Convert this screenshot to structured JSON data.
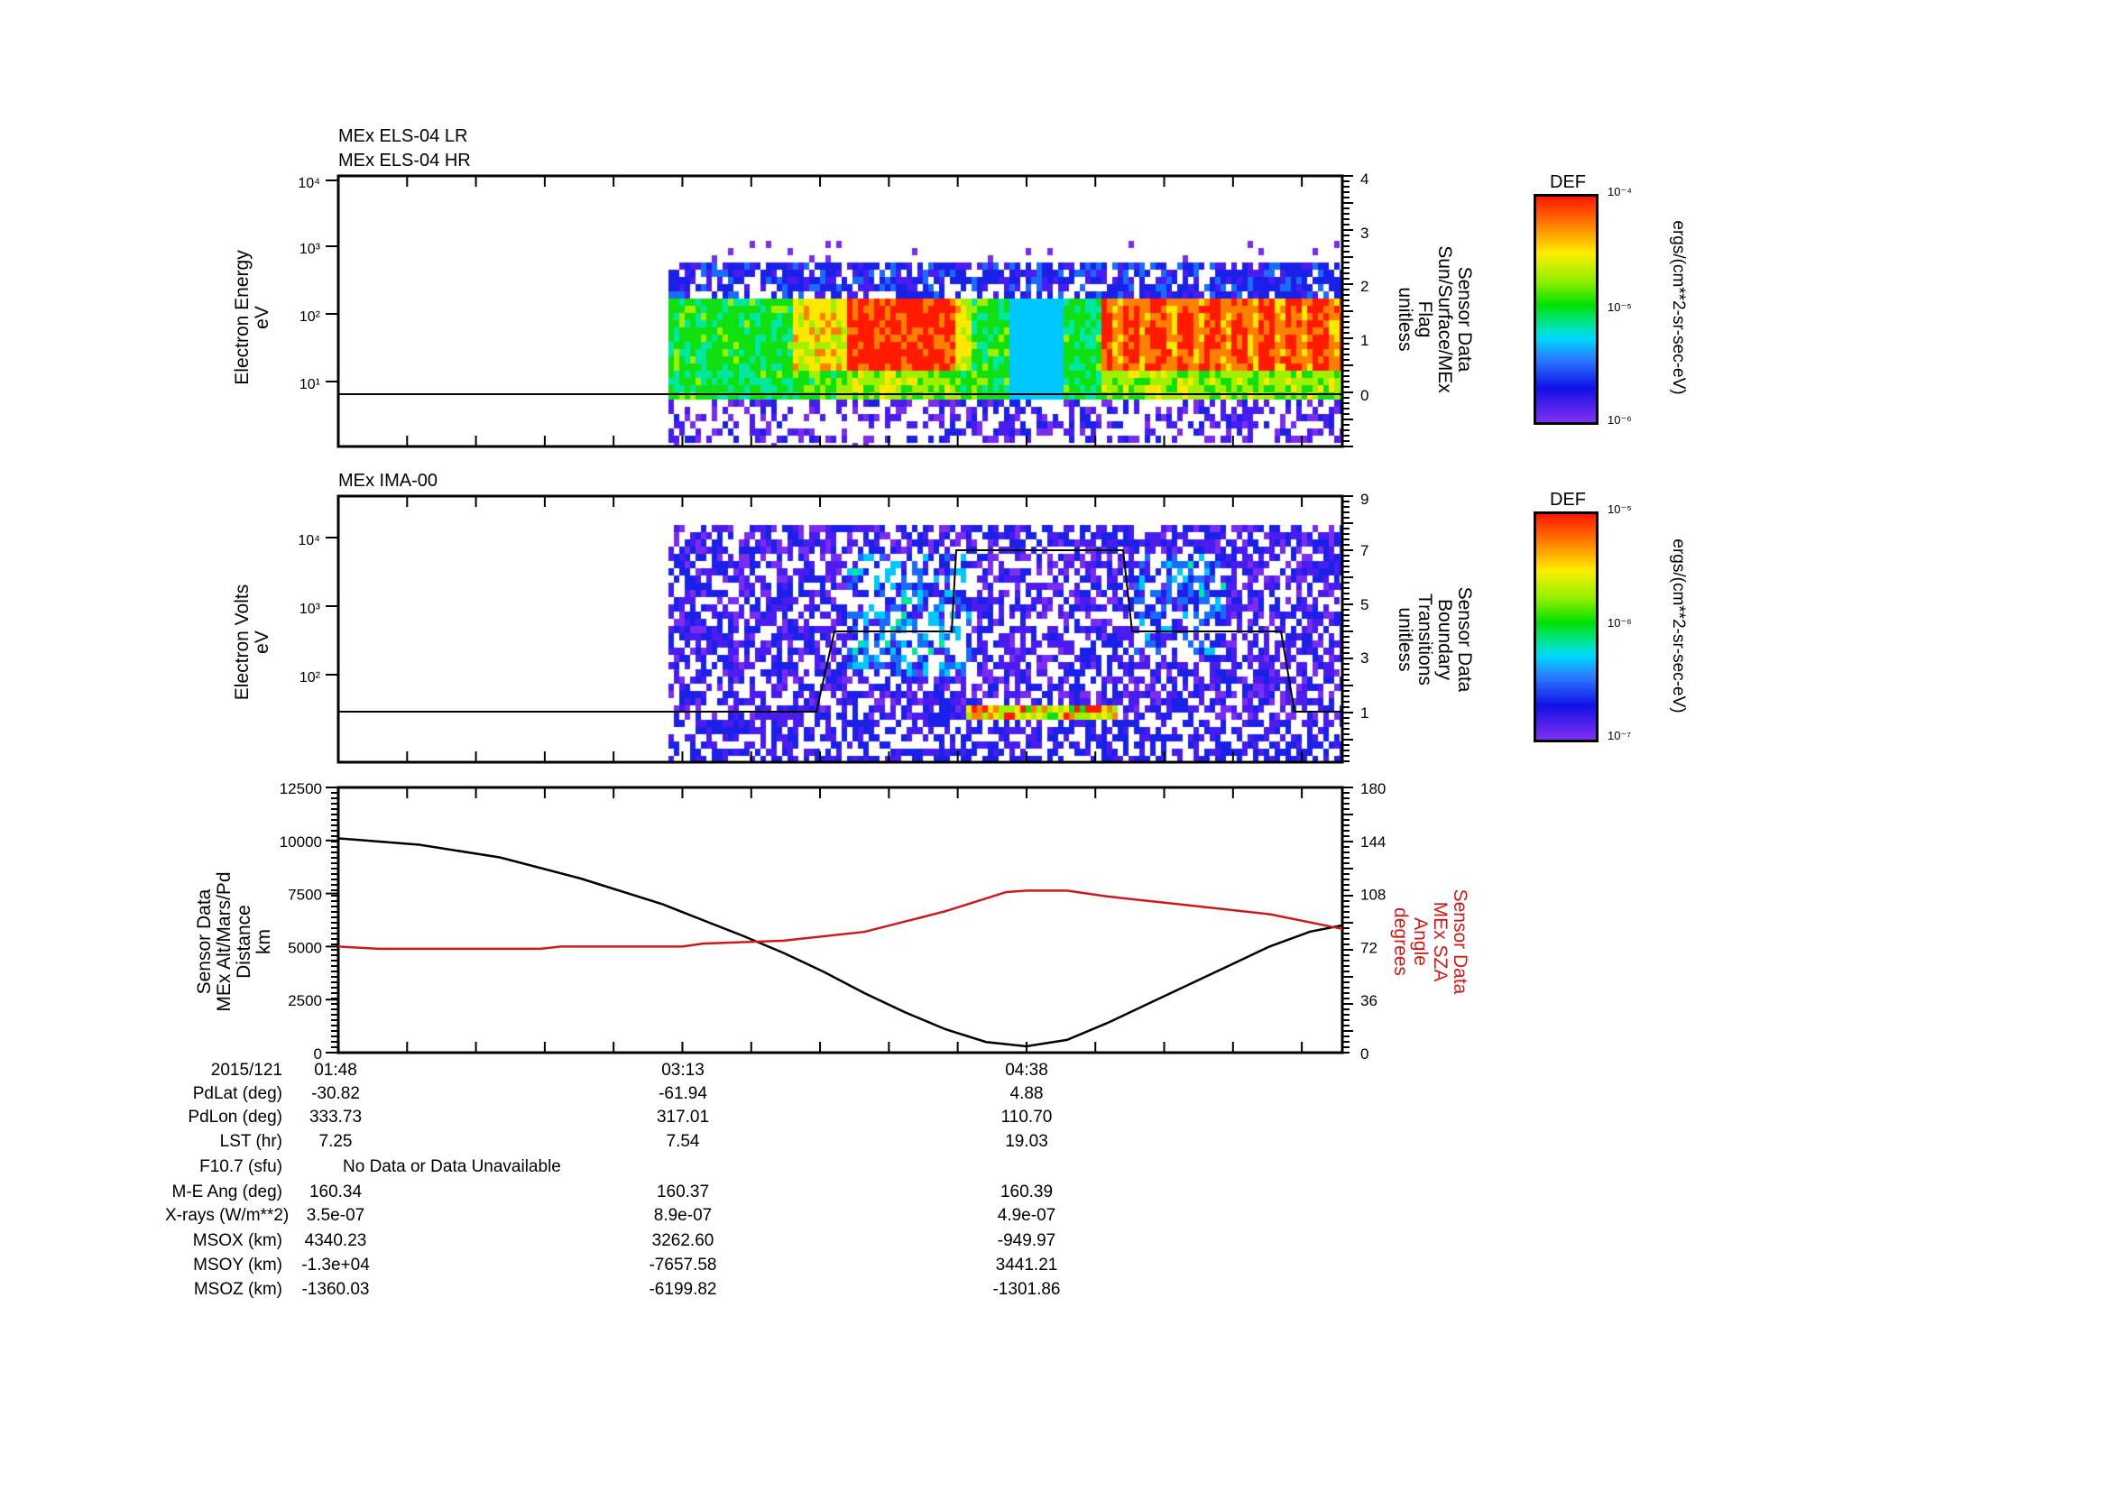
{
  "panel1": {
    "titles": [
      "MEx ELS-04 LR",
      "MEx ELS-04 HR"
    ],
    "ylabel": [
      "Electron Energy",
      "eV"
    ],
    "yticks": [
      "10⁴",
      "10³",
      "10²",
      "10¹"
    ],
    "y2label": [
      "Sensor Data",
      "Sun/Surface/MEx",
      "Flag",
      "unitless"
    ],
    "y2ticks": [
      "4",
      "3",
      "2",
      "1",
      "0"
    ],
    "colorbar": {
      "title": "DEF",
      "ticks": [
        "10⁻⁴",
        "10⁻⁵",
        "10⁻⁶"
      ],
      "unit": "ergs/(cm**2-sr-sec-eV)"
    }
  },
  "panel2": {
    "titles": [
      "MEx IMA-00"
    ],
    "ylabel": [
      "Electron Volts",
      "eV"
    ],
    "yticks": [
      "10⁴",
      "10³",
      "10²"
    ],
    "y2label": [
      "Sensor Data",
      "Boundary",
      "Transitions",
      "unitless"
    ],
    "y2ticks": [
      "9",
      "7",
      "5",
      "3",
      "1"
    ],
    "colorbar": {
      "title": "DEF",
      "ticks": [
        "10⁻⁵",
        "10⁻⁶",
        "10⁻⁷"
      ],
      "unit": "ergs/(cm**2-sr-sec-eV)"
    }
  },
  "chart_data": {
    "type": "line",
    "x_unit": "minutes after 01:48 (2015/121)",
    "xlim": [
      0,
      248
    ],
    "ylabel": [
      "Sensor Data",
      "MEx Alt/Mars/Pd",
      "Distance",
      "km"
    ],
    "y2label": [
      "Sensor Data",
      "MEx SZA",
      "Angle",
      "degrees"
    ],
    "ylim": [
      0,
      12500
    ],
    "y2lim": [
      0,
      180
    ],
    "yticks": [
      "12500",
      "10000",
      "7500",
      "5000",
      "2500",
      "0"
    ],
    "y2ticks": [
      "180",
      "144",
      "108",
      "72",
      "36",
      "0"
    ],
    "series": [
      {
        "name": "MEx Alt/Mars/Pd Distance (km)",
        "color": "#000000",
        "axis": "left",
        "x": [
          0,
          20,
          40,
          60,
          80,
          100,
          110,
          120,
          130,
          140,
          150,
          160,
          170,
          180,
          190,
          200,
          210,
          220,
          230,
          240,
          248
        ],
        "y": [
          10100,
          9800,
          9200,
          8200,
          7000,
          5500,
          4700,
          3800,
          2800,
          1900,
          1100,
          500,
          300,
          600,
          1400,
          2300,
          3200,
          4100,
          5000,
          5700,
          6000
        ]
      },
      {
        "name": "MEx SZA Angle (degrees)",
        "color": "#cc1a1a",
        "axis": "right",
        "x": [
          0,
          10,
          50,
          55,
          85,
          90,
          110,
          130,
          150,
          165,
          170,
          180,
          190,
          210,
          230,
          248
        ],
        "y": [
          72,
          70.5,
          70.5,
          72,
          72,
          74,
          76,
          82,
          96,
          109,
          110,
          110,
          106,
          100,
          94,
          84
        ]
      }
    ]
  },
  "table": {
    "rows": [
      {
        "label": "2015/121",
        "values": [
          "01:48",
          "03:13",
          "04:38"
        ]
      },
      {
        "label": "PdLat (deg)",
        "values": [
          "-30.82",
          "-61.94",
          "4.88"
        ]
      },
      {
        "label": "PdLon (deg)",
        "values": [
          "333.73",
          "317.01",
          "110.70"
        ]
      },
      {
        "label": "LST (hr)",
        "values": [
          "7.25",
          "7.54",
          "19.03"
        ]
      },
      {
        "label": "F10.7 (sfu)",
        "values": [
          "No Data or Data Unavailable"
        ]
      },
      {
        "label": "M-E Ang (deg)",
        "values": [
          "160.34",
          "160.37",
          "160.39"
        ]
      },
      {
        "label": "X-rays (W/m**2)",
        "values": [
          "3.5e-07",
          "8.9e-07",
          "4.9e-07"
        ]
      },
      {
        "label": "MSOX (km)",
        "values": [
          "4340.23",
          "3262.60",
          "-949.97"
        ]
      },
      {
        "label": "MSOY (km)",
        "values": [
          "-1.3e+04",
          "-7657.58",
          "3441.21"
        ]
      },
      {
        "label": "MSOZ (km)",
        "values": [
          "-1360.03",
          "-6199.82",
          "-1301.86"
        ]
      }
    ]
  }
}
